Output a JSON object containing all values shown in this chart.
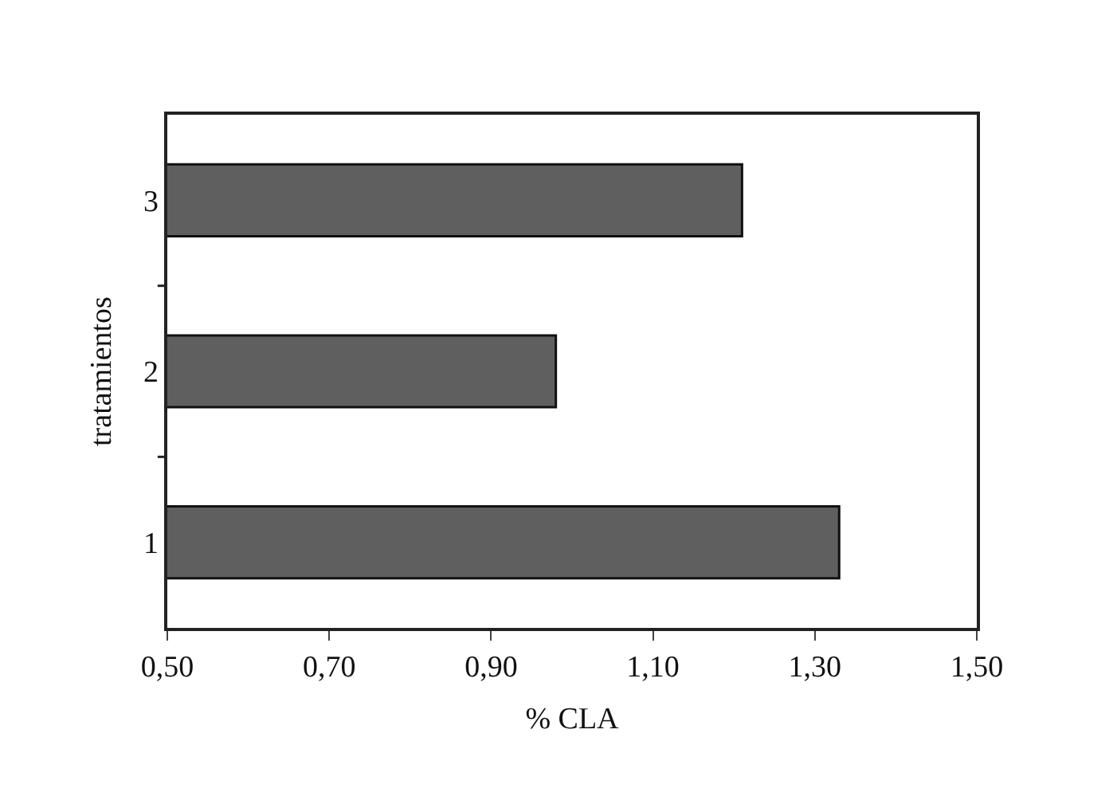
{
  "chart_data": {
    "type": "bar",
    "orientation": "horizontal",
    "xlabel": "% CLA",
    "ylabel": "tratamientos",
    "categories": [
      "3",
      "2",
      "1"
    ],
    "values": [
      1.21,
      0.98,
      1.33
    ],
    "color": "#5f5f5f",
    "xlim": [
      0.5,
      1.5
    ],
    "xticks": [
      {
        "value": 0.5,
        "label": "0,50"
      },
      {
        "value": 0.7,
        "label": "0,70"
      },
      {
        "value": 0.9,
        "label": "0,90"
      },
      {
        "value": 1.1,
        "label": "1,10"
      },
      {
        "value": 1.3,
        "label": "1,30"
      },
      {
        "value": 1.5,
        "label": "1,50"
      }
    ],
    "line_style": "solid"
  }
}
